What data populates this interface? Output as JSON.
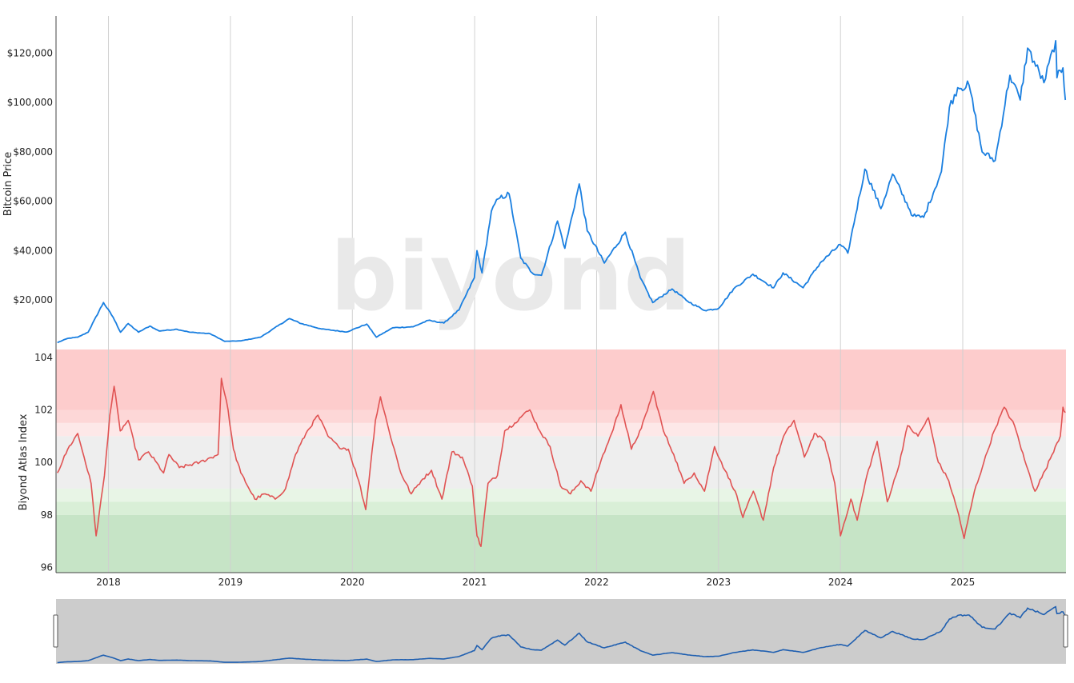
{
  "chart_data": {
    "type": "line",
    "watermark": "biyond",
    "x_ticks": [
      "2018",
      "2019",
      "2020",
      "2021",
      "2022",
      "2023",
      "2024",
      "2025"
    ],
    "price_panel": {
      "ylabel": "Bitcoin Price",
      "ylim": [
        0,
        135000
      ],
      "ticks": [
        {
          "value": 20000,
          "label": "$20,000"
        },
        {
          "value": 40000,
          "label": "$40,000"
        },
        {
          "value": 60000,
          "label": "$60,000"
        },
        {
          "value": 80000,
          "label": "$80,000"
        },
        {
          "value": 100000,
          "label": "$100,000"
        },
        {
          "value": 120000,
          "label": "$120,000"
        }
      ],
      "color": "#1a7fe0",
      "series": [
        {
          "x": "2017-08-01",
          "y": 2800
        },
        {
          "x": "2017-09-01",
          "y": 4500
        },
        {
          "x": "2017-10-01",
          "y": 5000
        },
        {
          "x": "2017-11-01",
          "y": 7000
        },
        {
          "x": "2017-12-17",
          "y": 19000
        },
        {
          "x": "2018-01-15",
          "y": 13000
        },
        {
          "x": "2018-02-06",
          "y": 7000
        },
        {
          "x": "2018-03-01",
          "y": 10500
        },
        {
          "x": "2018-04-01",
          "y": 7000
        },
        {
          "x": "2018-05-05",
          "y": 9500
        },
        {
          "x": "2018-06-01",
          "y": 7500
        },
        {
          "x": "2018-07-25",
          "y": 8200
        },
        {
          "x": "2018-09-01",
          "y": 7000
        },
        {
          "x": "2018-11-01",
          "y": 6400
        },
        {
          "x": "2018-12-15",
          "y": 3300
        },
        {
          "x": "2019-02-01",
          "y": 3500
        },
        {
          "x": "2019-04-01",
          "y": 5000
        },
        {
          "x": "2019-06-26",
          "y": 12500
        },
        {
          "x": "2019-08-01",
          "y": 10500
        },
        {
          "x": "2019-10-01",
          "y": 8300
        },
        {
          "x": "2019-12-15",
          "y": 7100
        },
        {
          "x": "2020-02-13",
          "y": 10300
        },
        {
          "x": "2020-03-13",
          "y": 5000
        },
        {
          "x": "2020-05-01",
          "y": 8800
        },
        {
          "x": "2020-07-01",
          "y": 9200
        },
        {
          "x": "2020-08-15",
          "y": 11800
        },
        {
          "x": "2020-10-01",
          "y": 10700
        },
        {
          "x": "2020-11-15",
          "y": 16000
        },
        {
          "x": "2020-12-31",
          "y": 29000
        },
        {
          "x": "2021-01-08",
          "y": 40000
        },
        {
          "x": "2021-01-23",
          "y": 31000
        },
        {
          "x": "2021-02-20",
          "y": 56000
        },
        {
          "x": "2021-03-13",
          "y": 61000
        },
        {
          "x": "2021-04-14",
          "y": 63000
        },
        {
          "x": "2021-05-19",
          "y": 37000
        },
        {
          "x": "2021-06-22",
          "y": 31000
        },
        {
          "x": "2021-07-20",
          "y": 30000
        },
        {
          "x": "2021-09-06",
          "y": 52000
        },
        {
          "x": "2021-09-28",
          "y": 41000
        },
        {
          "x": "2021-11-10",
          "y": 67000
        },
        {
          "x": "2021-12-04",
          "y": 48000
        },
        {
          "x": "2022-01-24",
          "y": 35000
        },
        {
          "x": "2022-03-28",
          "y": 47500
        },
        {
          "x": "2022-05-12",
          "y": 29000
        },
        {
          "x": "2022-06-18",
          "y": 19000
        },
        {
          "x": "2022-08-15",
          "y": 24500
        },
        {
          "x": "2022-10-01",
          "y": 19500
        },
        {
          "x": "2022-11-21",
          "y": 15800
        },
        {
          "x": "2023-01-01",
          "y": 16600
        },
        {
          "x": "2023-02-15",
          "y": 24500
        },
        {
          "x": "2023-04-14",
          "y": 30500
        },
        {
          "x": "2023-06-15",
          "y": 25000
        },
        {
          "x": "2023-07-13",
          "y": 31000
        },
        {
          "x": "2023-09-11",
          "y": 25000
        },
        {
          "x": "2023-11-01",
          "y": 35000
        },
        {
          "x": "2023-12-31",
          "y": 42500
        },
        {
          "x": "2024-01-23",
          "y": 39000
        },
        {
          "x": "2024-03-14",
          "y": 73000
        },
        {
          "x": "2024-05-01",
          "y": 57000
        },
        {
          "x": "2024-06-05",
          "y": 71000
        },
        {
          "x": "2024-08-05",
          "y": 54000
        },
        {
          "x": "2024-09-06",
          "y": 53500
        },
        {
          "x": "2024-10-29",
          "y": 72000
        },
        {
          "x": "2024-11-22",
          "y": 98000
        },
        {
          "x": "2024-12-17",
          "y": 106000
        },
        {
          "x": "2025-01-20",
          "y": 107000
        },
        {
          "x": "2025-02-28",
          "y": 80000
        },
        {
          "x": "2025-04-08",
          "y": 76500
        },
        {
          "x": "2025-05-22",
          "y": 111000
        },
        {
          "x": "2025-06-22",
          "y": 101000
        },
        {
          "x": "2025-07-14",
          "y": 122000
        },
        {
          "x": "2025-09-01",
          "y": 108000
        },
        {
          "x": "2025-10-06",
          "y": 125000
        },
        {
          "x": "2025-10-10",
          "y": 110000
        },
        {
          "x": "2025-10-28",
          "y": 114000
        },
        {
          "x": "2025-11-04",
          "y": 101000
        }
      ]
    },
    "index_panel": {
      "ylabel": "Biyond Atlas Index",
      "ylim": [
        95.8,
        104.3
      ],
      "ticks": [
        96,
        98,
        100,
        102,
        104
      ],
      "color": "#e05353",
      "bands": [
        {
          "from": 102,
          "to": 104.3,
          "color": "#fdcccc"
        },
        {
          "from": 101.5,
          "to": 102,
          "color": "#fdd7d7"
        },
        {
          "from": 101,
          "to": 101.5,
          "color": "#fde8e8"
        },
        {
          "from": 99,
          "to": 101,
          "color": "#eeeeee"
        },
        {
          "from": 98.5,
          "to": 99,
          "color": "#e8f5e6"
        },
        {
          "from": 98,
          "to": 98.5,
          "color": "#d9efd7"
        },
        {
          "from": 95.8,
          "to": 98,
          "color": "#c6e4c6"
        }
      ],
      "series": [
        {
          "x": "2017-08-01",
          "y": 99.6
        },
        {
          "x": "2017-09-01",
          "y": 100.5
        },
        {
          "x": "2017-10-01",
          "y": 101.1
        },
        {
          "x": "2017-10-20",
          "y": 100.2
        },
        {
          "x": "2017-11-10",
          "y": 99.2
        },
        {
          "x": "2017-11-25",
          "y": 97.2
        },
        {
          "x": "2017-12-20",
          "y": 99.5
        },
        {
          "x": "2018-01-05",
          "y": 101.8
        },
        {
          "x": "2018-01-18",
          "y": 102.9
        },
        {
          "x": "2018-02-05",
          "y": 101.2
        },
        {
          "x": "2018-03-01",
          "y": 101.6
        },
        {
          "x": "2018-04-01",
          "y": 100.1
        },
        {
          "x": "2018-05-01",
          "y": 100.4
        },
        {
          "x": "2018-06-15",
          "y": 99.6
        },
        {
          "x": "2018-07-01",
          "y": 100.3
        },
        {
          "x": "2018-08-01",
          "y": 99.8
        },
        {
          "x": "2018-10-01",
          "y": 100.0
        },
        {
          "x": "2018-11-25",
          "y": 100.3
        },
        {
          "x": "2018-12-05",
          "y": 103.2
        },
        {
          "x": "2018-12-25",
          "y": 102.0
        },
        {
          "x": "2019-01-10",
          "y": 100.5
        },
        {
          "x": "2019-02-01",
          "y": 99.6
        },
        {
          "x": "2019-03-15",
          "y": 98.6
        },
        {
          "x": "2019-04-15",
          "y": 98.8
        },
        {
          "x": "2019-05-15",
          "y": 98.6
        },
        {
          "x": "2019-06-15",
          "y": 99.0
        },
        {
          "x": "2019-07-15",
          "y": 100.3
        },
        {
          "x": "2019-08-15",
          "y": 101.1
        },
        {
          "x": "2019-09-20",
          "y": 101.8
        },
        {
          "x": "2019-10-20",
          "y": 101.0
        },
        {
          "x": "2019-11-20",
          "y": 100.6
        },
        {
          "x": "2019-12-20",
          "y": 100.5
        },
        {
          "x": "2020-01-20",
          "y": 99.3
        },
        {
          "x": "2020-02-10",
          "y": 98.2
        },
        {
          "x": "2020-03-10",
          "y": 101.6
        },
        {
          "x": "2020-03-25",
          "y": 102.5
        },
        {
          "x": "2020-04-20",
          "y": 101.2
        },
        {
          "x": "2020-05-25",
          "y": 99.6
        },
        {
          "x": "2020-06-25",
          "y": 98.8
        },
        {
          "x": "2020-07-25",
          "y": 99.3
        },
        {
          "x": "2020-08-25",
          "y": 99.7
        },
        {
          "x": "2020-09-25",
          "y": 98.6
        },
        {
          "x": "2020-10-25",
          "y": 100.4
        },
        {
          "x": "2020-11-25",
          "y": 100.2
        },
        {
          "x": "2020-12-25",
          "y": 99.1
        },
        {
          "x": "2021-01-08",
          "y": 97.2
        },
        {
          "x": "2021-01-20",
          "y": 96.8
        },
        {
          "x": "2021-02-10",
          "y": 99.2
        },
        {
          "x": "2021-03-10",
          "y": 99.5
        },
        {
          "x": "2021-04-01",
          "y": 101.2
        },
        {
          "x": "2021-05-01",
          "y": 101.5
        },
        {
          "x": "2021-05-25",
          "y": 101.8
        },
        {
          "x": "2021-06-15",
          "y": 102.0
        },
        {
          "x": "2021-07-15",
          "y": 101.2
        },
        {
          "x": "2021-08-15",
          "y": 100.6
        },
        {
          "x": "2021-09-15",
          "y": 99.1
        },
        {
          "x": "2021-10-15",
          "y": 98.8
        },
        {
          "x": "2021-11-15",
          "y": 99.3
        },
        {
          "x": "2021-12-15",
          "y": 98.9
        },
        {
          "x": "2022-01-15",
          "y": 100.1
        },
        {
          "x": "2022-02-15",
          "y": 101.1
        },
        {
          "x": "2022-03-15",
          "y": 102.2
        },
        {
          "x": "2022-04-15",
          "y": 100.5
        },
        {
          "x": "2022-05-15",
          "y": 101.3
        },
        {
          "x": "2022-06-20",
          "y": 102.7
        },
        {
          "x": "2022-07-20",
          "y": 101.2
        },
        {
          "x": "2022-08-20",
          "y": 100.3
        },
        {
          "x": "2022-09-20",
          "y": 99.2
        },
        {
          "x": "2022-10-20",
          "y": 99.6
        },
        {
          "x": "2022-11-20",
          "y": 98.9
        },
        {
          "x": "2022-12-20",
          "y": 100.6
        },
        {
          "x": "2023-01-20",
          "y": 99.7
        },
        {
          "x": "2023-02-20",
          "y": 98.9
        },
        {
          "x": "2023-03-15",
          "y": 97.9
        },
        {
          "x": "2023-04-15",
          "y": 98.9
        },
        {
          "x": "2023-05-15",
          "y": 97.8
        },
        {
          "x": "2023-06-15",
          "y": 99.8
        },
        {
          "x": "2023-07-15",
          "y": 101.0
        },
        {
          "x": "2023-08-15",
          "y": 101.6
        },
        {
          "x": "2023-09-15",
          "y": 100.2
        },
        {
          "x": "2023-10-15",
          "y": 101.1
        },
        {
          "x": "2023-11-15",
          "y": 100.8
        },
        {
          "x": "2023-12-15",
          "y": 99.2
        },
        {
          "x": "2024-01-01",
          "y": 97.2
        },
        {
          "x": "2024-02-01",
          "y": 98.6
        },
        {
          "x": "2024-02-20",
          "y": 97.8
        },
        {
          "x": "2024-03-20",
          "y": 99.5
        },
        {
          "x": "2024-04-20",
          "y": 100.8
        },
        {
          "x": "2024-05-20",
          "y": 98.5
        },
        {
          "x": "2024-06-20",
          "y": 99.7
        },
        {
          "x": "2024-07-20",
          "y": 101.4
        },
        {
          "x": "2024-08-20",
          "y": 101.0
        },
        {
          "x": "2024-09-20",
          "y": 101.7
        },
        {
          "x": "2024-10-20",
          "y": 100.0
        },
        {
          "x": "2024-11-20",
          "y": 99.3
        },
        {
          "x": "2024-12-20",
          "y": 98.0
        },
        {
          "x": "2025-01-05",
          "y": 97.1
        },
        {
          "x": "2025-02-05",
          "y": 98.9
        },
        {
          "x": "2025-03-05",
          "y": 100.0
        },
        {
          "x": "2025-04-05",
          "y": 101.2
        },
        {
          "x": "2025-05-05",
          "y": 102.1
        },
        {
          "x": "2025-06-05",
          "y": 101.4
        },
        {
          "x": "2025-07-05",
          "y": 100.1
        },
        {
          "x": "2025-08-05",
          "y": 98.9
        },
        {
          "x": "2025-09-05",
          "y": 99.7
        },
        {
          "x": "2025-10-05",
          "y": 100.6
        },
        {
          "x": "2025-10-20",
          "y": 101.0
        },
        {
          "x": "2025-10-28",
          "y": 102.1
        },
        {
          "x": "2025-11-04",
          "y": 101.9
        }
      ]
    },
    "x_range": [
      "2017-07-28",
      "2025-11-06"
    ],
    "grid": "vertical",
    "range_selector": {
      "visible": true
    }
  }
}
